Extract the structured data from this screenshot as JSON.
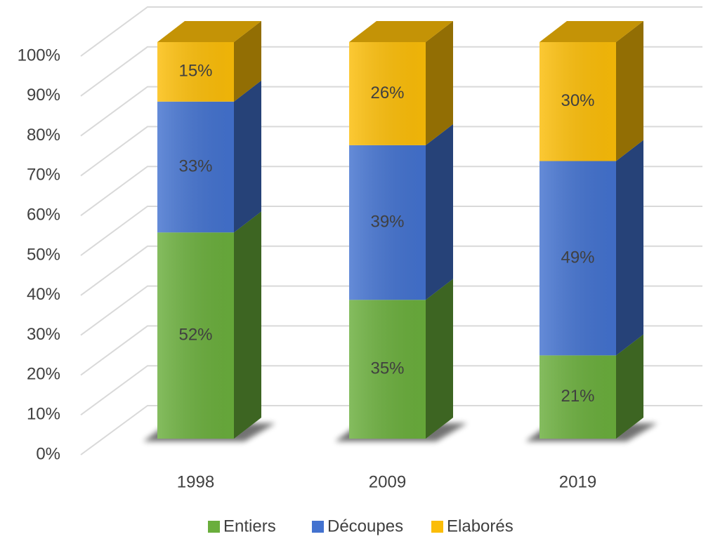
{
  "chart_data": {
    "type": "bar3d_stacked",
    "categories": [
      "1998",
      "2009",
      "2019"
    ],
    "series": [
      {
        "name": "Entiers",
        "color": "#6aae3c",
        "values": [
          52,
          35,
          21
        ],
        "value_labels": [
          "52%",
          "35%",
          "21%"
        ]
      },
      {
        "name": "Découpes",
        "color": "#4372cf",
        "values": [
          33,
          39,
          49
        ],
        "value_labels": [
          "33%",
          "39%",
          "49%"
        ]
      },
      {
        "name": "Elaborés",
        "color": "#fbbd08",
        "values": [
          15,
          26,
          30
        ],
        "value_labels": [
          "15%",
          "26%",
          "30%"
        ]
      }
    ],
    "ylim": [
      0,
      100
    ],
    "yticks": [
      {
        "value": 0,
        "label": "0%"
      },
      {
        "value": 10,
        "label": "10%"
      },
      {
        "value": 20,
        "label": "20%"
      },
      {
        "value": 30,
        "label": "30%"
      },
      {
        "value": 40,
        "label": "40%"
      },
      {
        "value": 50,
        "label": "50%"
      },
      {
        "value": 60,
        "label": "60%"
      },
      {
        "value": 70,
        "label": "70%"
      },
      {
        "value": 80,
        "label": "80%"
      },
      {
        "value": 90,
        "label": "90%"
      },
      {
        "value": 100,
        "label": "100%"
      }
    ],
    "grid": true,
    "legend": "bottom"
  }
}
